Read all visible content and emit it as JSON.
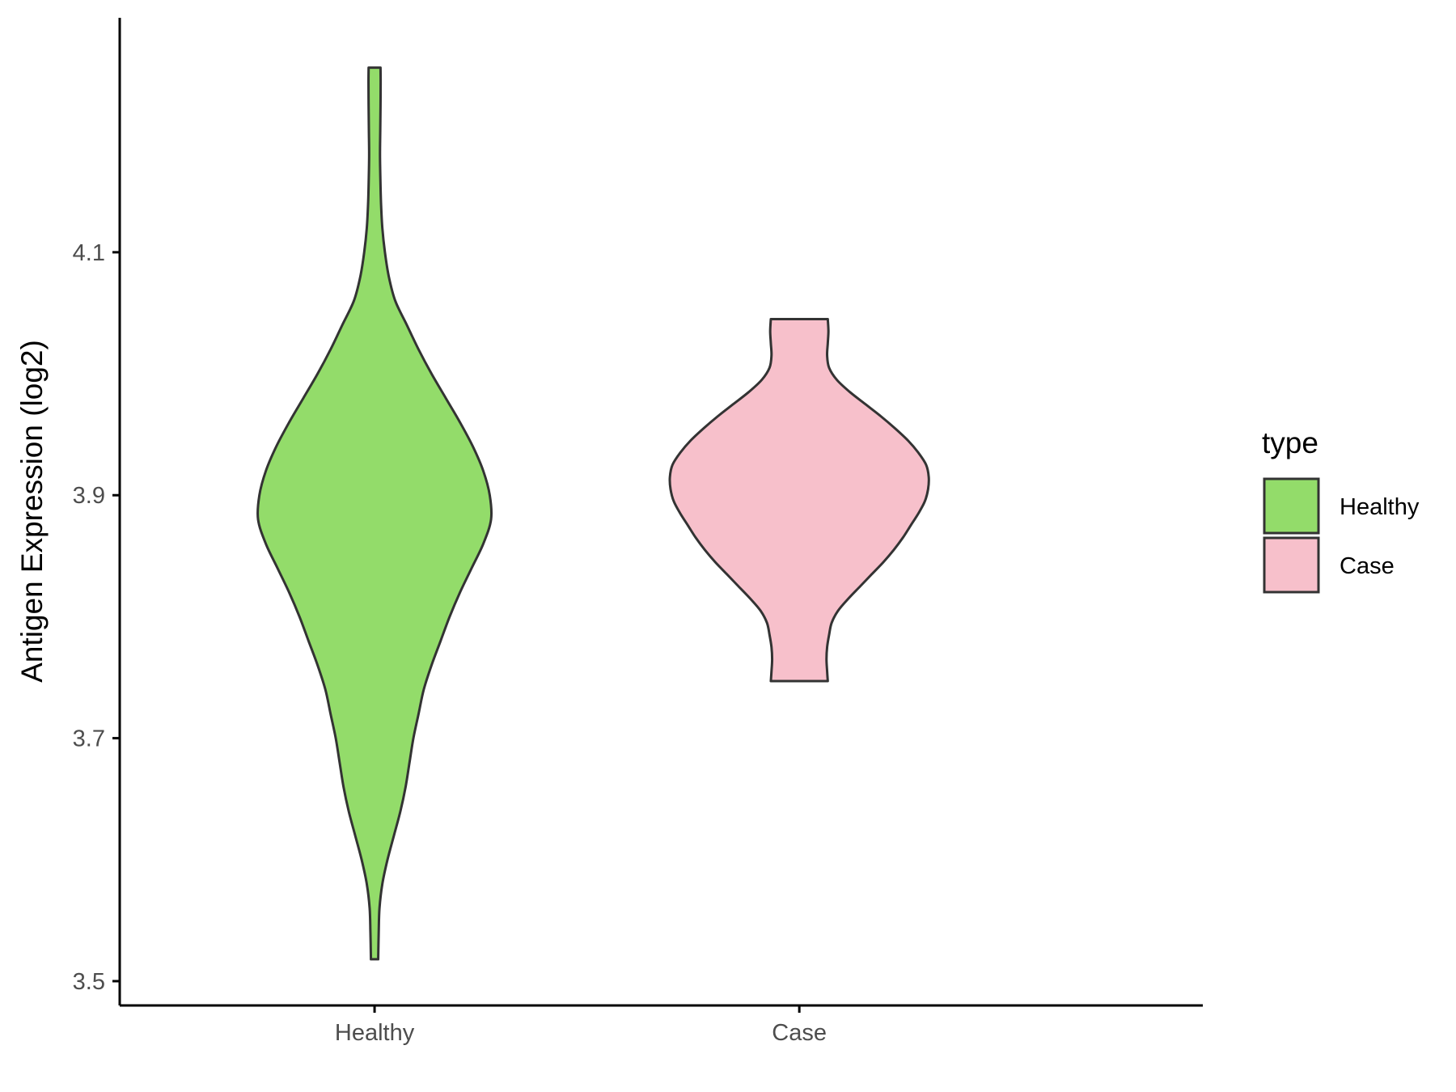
{
  "chart_data": {
    "type": "violin",
    "ylabel": "Antigen Expression (log2)",
    "xlabel": "",
    "ylim": [
      3.48,
      4.293
    ],
    "yticks": [
      3.5,
      3.7,
      3.9,
      4.1
    ],
    "ytick_labels": [
      "3.5",
      "3.7",
      "3.9",
      "4.1"
    ],
    "categories": [
      "Healthy",
      "Case"
    ],
    "legend": {
      "title": "type",
      "position": "right",
      "entries": [
        "Healthy",
        "Case"
      ]
    },
    "grid": false,
    "series": [
      {
        "name": "Healthy",
        "color": "#93dc6a",
        "min": 3.518,
        "max": 4.252,
        "profile": [
          [
            3.518,
            0.028
          ],
          [
            3.54,
            0.032
          ],
          [
            3.56,
            0.038
          ],
          [
            3.58,
            0.06
          ],
          [
            3.6,
            0.1
          ],
          [
            3.62,
            0.15
          ],
          [
            3.64,
            0.2
          ],
          [
            3.66,
            0.24
          ],
          [
            3.68,
            0.27
          ],
          [
            3.7,
            0.3
          ],
          [
            3.72,
            0.34
          ],
          [
            3.74,
            0.38
          ],
          [
            3.76,
            0.44
          ],
          [
            3.78,
            0.51
          ],
          [
            3.8,
            0.58
          ],
          [
            3.82,
            0.66
          ],
          [
            3.84,
            0.75
          ],
          [
            3.86,
            0.84
          ],
          [
            3.88,
            0.9
          ],
          [
            3.9,
            0.89
          ],
          [
            3.92,
            0.84
          ],
          [
            3.94,
            0.76
          ],
          [
            3.96,
            0.66
          ],
          [
            3.98,
            0.55
          ],
          [
            4.0,
            0.44
          ],
          [
            4.02,
            0.34
          ],
          [
            4.04,
            0.25
          ],
          [
            4.06,
            0.16
          ],
          [
            4.08,
            0.11
          ],
          [
            4.1,
            0.08
          ],
          [
            4.12,
            0.06
          ],
          [
            4.14,
            0.05
          ],
          [
            4.16,
            0.045
          ],
          [
            4.18,
            0.042
          ],
          [
            4.2,
            0.044
          ],
          [
            4.22,
            0.046
          ],
          [
            4.24,
            0.047
          ],
          [
            4.252,
            0.046
          ]
        ]
      },
      {
        "name": "Case",
        "color": "#f7c0cb",
        "min": 3.747,
        "max": 4.045,
        "profile": [
          [
            3.747,
            0.22
          ],
          [
            3.755,
            0.215
          ],
          [
            3.765,
            0.21
          ],
          [
            3.775,
            0.215
          ],
          [
            3.785,
            0.23
          ],
          [
            3.795,
            0.25
          ],
          [
            3.805,
            0.3
          ],
          [
            3.815,
            0.38
          ],
          [
            3.825,
            0.47
          ],
          [
            3.835,
            0.56
          ],
          [
            3.845,
            0.65
          ],
          [
            3.855,
            0.73
          ],
          [
            3.865,
            0.8
          ],
          [
            3.875,
            0.86
          ],
          [
            3.885,
            0.92
          ],
          [
            3.895,
            0.97
          ],
          [
            3.905,
            0.995
          ],
          [
            3.915,
            1.0
          ],
          [
            3.925,
            0.98
          ],
          [
            3.935,
            0.92
          ],
          [
            3.945,
            0.84
          ],
          [
            3.955,
            0.74
          ],
          [
            3.965,
            0.63
          ],
          [
            3.975,
            0.51
          ],
          [
            3.985,
            0.39
          ],
          [
            3.995,
            0.29
          ],
          [
            4.005,
            0.23
          ],
          [
            4.015,
            0.215
          ],
          [
            4.025,
            0.22
          ],
          [
            4.035,
            0.225
          ],
          [
            4.045,
            0.22
          ]
        ]
      }
    ]
  }
}
